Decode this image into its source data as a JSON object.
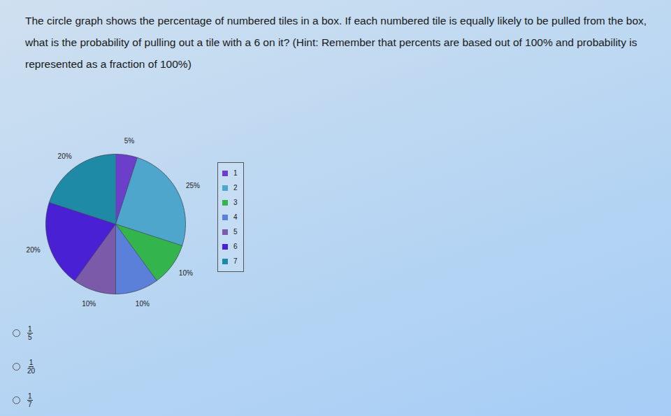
{
  "question": "The circle graph shows the percentage of numbered tiles in a box. If each numbered tile is equally likely to be pulled from the box, what is the probability of pulling out a tile with a 6 on it? (Hint: Remember that percents are based out of 100% and probability is represented as a fraction of 100%)",
  "chart_data": {
    "type": "pie",
    "categories": [
      "1",
      "2",
      "3",
      "4",
      "5",
      "6",
      "7"
    ],
    "values": [
      5,
      25,
      10,
      10,
      10,
      20,
      20
    ],
    "value_labels": [
      "5%",
      "25%",
      "10%",
      "10%",
      "10%",
      "20%",
      "20%"
    ],
    "data_labels": true,
    "colors": [
      "#6b3fc9",
      "#4fa6cc",
      "#34b44c",
      "#5a80da",
      "#7b5aa9",
      "#4a20d4",
      "#1f8aa6"
    ],
    "legend": "right"
  },
  "choices": [
    {
      "numerator": 1,
      "denominator": 5
    },
    {
      "numerator": 1,
      "denominator": 20
    },
    {
      "numerator": 1,
      "denominator": 7
    }
  ]
}
